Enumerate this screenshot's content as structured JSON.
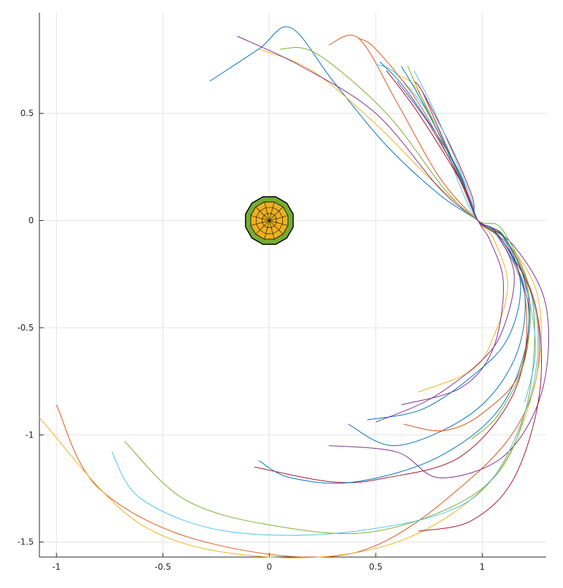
{
  "chart_data": {
    "type": "line",
    "title": "",
    "xlabel": "",
    "ylabel": "",
    "xlim": [
      -1.08,
      1.3
    ],
    "ylim": [
      -1.57,
      0.97
    ],
    "grid": true,
    "x_ticks": [
      -1,
      -0.5,
      0,
      0.5,
      1
    ],
    "x_tick_labels": [
      "-1",
      "-0.5",
      "0",
      "0.5",
      "1"
    ],
    "y_ticks": [
      0.5,
      0,
      -0.5,
      -1,
      -1.5
    ],
    "y_tick_labels": [
      "0.5",
      "0",
      "-0.5",
      "-1",
      "-1.5"
    ],
    "center_body": {
      "x": 0,
      "y": 0,
      "radius": 0.115,
      "colors": {
        "outer": "#77ac30",
        "inner": "#edb120",
        "edge": "#000000"
      }
    },
    "attractor": {
      "x": 0.98,
      "y": 0
    },
    "series": [
      {
        "color": "#0072bd",
        "values": [
          [
            -0.28,
            0.65
          ],
          [
            -0.05,
            0.8
          ],
          [
            0.1,
            0.9
          ],
          [
            0.3,
            0.65
          ],
          [
            0.55,
            0.35
          ],
          [
            0.8,
            0.12
          ],
          [
            0.98,
            0.0
          ],
          [
            1.1,
            -0.1
          ],
          [
            1.2,
            -0.35
          ],
          [
            1.15,
            -0.65
          ],
          [
            0.95,
            -0.9
          ],
          [
            0.6,
            -1.05
          ],
          [
            0.37,
            -0.95
          ]
        ]
      },
      {
        "color": "#d95319",
        "values": [
          [
            0.28,
            0.82
          ],
          [
            0.42,
            0.85
          ],
          [
            0.6,
            0.55
          ],
          [
            0.8,
            0.2
          ],
          [
            0.98,
            0.0
          ],
          [
            1.12,
            -0.1
          ],
          [
            1.26,
            -0.45
          ],
          [
            1.22,
            -0.85
          ],
          [
            0.95,
            -1.2
          ],
          [
            0.4,
            -1.55
          ],
          [
            -0.3,
            -1.5
          ],
          [
            -0.8,
            -1.25
          ],
          [
            -1.0,
            -0.86
          ]
        ]
      },
      {
        "color": "#edb120",
        "values": [
          [
            -0.05,
            0.8
          ],
          [
            0.2,
            0.7
          ],
          [
            0.5,
            0.45
          ],
          [
            0.75,
            0.2
          ],
          [
            0.98,
            0.0
          ],
          [
            1.1,
            -0.08
          ],
          [
            1.26,
            -0.35
          ],
          [
            1.25,
            -0.75
          ],
          [
            1.05,
            -1.2
          ],
          [
            0.6,
            -1.5
          ],
          [
            0.0,
            -1.57
          ],
          [
            -0.6,
            -1.42
          ],
          [
            -1.08,
            -0.92
          ]
        ]
      },
      {
        "color": "#7e2f8e",
        "values": [
          [
            -0.15,
            0.86
          ],
          [
            0.15,
            0.72
          ],
          [
            0.5,
            0.5
          ],
          [
            0.8,
            0.15
          ],
          [
            0.98,
            0.0
          ],
          [
            1.15,
            -0.12
          ],
          [
            1.3,
            -0.4
          ],
          [
            1.28,
            -0.8
          ],
          [
            1.1,
            -1.1
          ],
          [
            0.8,
            -1.2
          ],
          [
            0.6,
            -1.08
          ],
          [
            0.28,
            -1.05
          ]
        ]
      },
      {
        "color": "#77ac30",
        "values": [
          [
            0.05,
            0.8
          ],
          [
            0.22,
            0.78
          ],
          [
            0.55,
            0.5
          ],
          [
            0.82,
            0.15
          ],
          [
            0.98,
            0.0
          ],
          [
            1.1,
            -0.05
          ],
          [
            1.24,
            -0.4
          ],
          [
            1.2,
            -0.9
          ],
          [
            1.0,
            -1.25
          ],
          [
            0.5,
            -1.45
          ],
          [
            0.0,
            -1.42
          ],
          [
            -0.4,
            -1.3
          ],
          [
            -0.68,
            -1.03
          ]
        ]
      },
      {
        "color": "#4dbeee",
        "values": [
          [
            0.5,
            0.73
          ],
          [
            0.6,
            0.68
          ],
          [
            0.78,
            0.45
          ],
          [
            0.9,
            0.15
          ],
          [
            0.98,
            0.0
          ],
          [
            1.15,
            -0.15
          ],
          [
            1.26,
            -0.5
          ],
          [
            1.2,
            -0.9
          ],
          [
            0.95,
            -1.3
          ],
          [
            0.4,
            -1.45
          ],
          [
            -0.2,
            -1.45
          ],
          [
            -0.6,
            -1.3
          ],
          [
            -0.74,
            -1.08
          ]
        ]
      },
      {
        "color": "#a2142f",
        "values": [
          [
            0.68,
            0.65
          ],
          [
            0.72,
            0.6
          ],
          [
            0.85,
            0.35
          ],
          [
            0.95,
            0.12
          ],
          [
            0.98,
            0.0
          ],
          [
            1.12,
            -0.1
          ],
          [
            1.22,
            -0.4
          ],
          [
            1.15,
            -0.8
          ],
          [
            0.9,
            -1.1
          ],
          [
            0.55,
            -1.2
          ],
          [
            0.3,
            -1.22
          ],
          [
            -0.07,
            -1.15
          ]
        ]
      },
      {
        "color": "#0072bd",
        "values": [
          [
            0.52,
            0.74
          ],
          [
            0.65,
            0.6
          ],
          [
            0.88,
            0.25
          ],
          [
            0.98,
            0.0
          ],
          [
            1.1,
            -0.08
          ],
          [
            1.22,
            -0.45
          ],
          [
            1.1,
            -0.85
          ],
          [
            0.8,
            -1.1
          ],
          [
            0.4,
            -1.22
          ],
          [
            0.1,
            -1.2
          ],
          [
            -0.05,
            -1.12
          ]
        ]
      },
      {
        "color": "#d95319",
        "values": [
          [
            0.42,
            0.85
          ],
          [
            0.5,
            0.8
          ],
          [
            0.7,
            0.55
          ],
          [
            0.88,
            0.22
          ],
          [
            0.98,
            0.0
          ],
          [
            1.08,
            -0.08
          ],
          [
            1.2,
            -0.35
          ],
          [
            1.18,
            -0.7
          ],
          [
            1.0,
            -0.9
          ],
          [
            0.82,
            -0.98
          ],
          [
            0.63,
            -0.95
          ]
        ]
      },
      {
        "color": "#edb120",
        "values": [
          [
            0.6,
            0.68
          ],
          [
            0.7,
            0.6
          ],
          [
            0.9,
            0.2
          ],
          [
            0.98,
            0.0
          ],
          [
            1.05,
            -0.08
          ],
          [
            1.12,
            -0.3
          ],
          [
            1.05,
            -0.55
          ],
          [
            0.95,
            -0.7
          ],
          [
            0.7,
            -0.8
          ]
        ]
      },
      {
        "color": "#7e2f8e",
        "values": [
          [
            0.72,
            0.6
          ],
          [
            0.8,
            0.42
          ],
          [
            0.92,
            0.15
          ],
          [
            0.98,
            0.0
          ],
          [
            1.04,
            -0.1
          ],
          [
            1.1,
            -0.3
          ],
          [
            1.05,
            -0.6
          ],
          [
            0.9,
            -0.78
          ],
          [
            0.62,
            -0.86
          ]
        ]
      },
      {
        "color": "#77ac30",
        "values": [
          [
            0.65,
            0.72
          ],
          [
            0.75,
            0.5
          ],
          [
            0.92,
            0.15
          ],
          [
            0.98,
            0.0
          ],
          [
            1.12,
            -0.1
          ],
          [
            1.22,
            -0.35
          ],
          [
            1.2,
            -0.65
          ],
          [
            1.08,
            -0.9
          ],
          [
            0.95,
            -1.02
          ]
        ]
      },
      {
        "color": "#4dbeee",
        "values": [
          [
            0.68,
            0.7
          ],
          [
            0.78,
            0.5
          ],
          [
            0.93,
            0.15
          ],
          [
            0.98,
            0.0
          ],
          [
            1.06,
            -0.06
          ],
          [
            1.2,
            -0.3
          ],
          [
            1.25,
            -0.6
          ],
          [
            1.2,
            -0.85
          ]
        ]
      },
      {
        "color": "#a2142f",
        "values": [
          [
            0.55,
            0.7
          ],
          [
            0.7,
            0.5
          ],
          [
            0.9,
            0.18
          ],
          [
            0.98,
            0.0
          ],
          [
            1.1,
            -0.1
          ],
          [
            1.25,
            -0.4
          ],
          [
            1.27,
            -0.8
          ],
          [
            1.15,
            -1.2
          ],
          [
            0.95,
            -1.4
          ],
          [
            0.7,
            -1.45
          ]
        ]
      },
      {
        "color": "#0072bd",
        "values": [
          [
            0.62,
            0.72
          ],
          [
            0.72,
            0.55
          ],
          [
            0.9,
            0.2
          ],
          [
            0.98,
            0.0
          ],
          [
            1.1,
            -0.07
          ],
          [
            1.18,
            -0.3
          ],
          [
            1.12,
            -0.55
          ],
          [
            0.96,
            -0.72
          ],
          [
            0.72,
            -0.88
          ],
          [
            0.46,
            -0.93
          ]
        ]
      },
      {
        "color": "#7e2f8e",
        "values": [
          [
            0.6,
            0.65
          ],
          [
            0.75,
            0.45
          ],
          [
            0.92,
            0.15
          ],
          [
            0.98,
            0.0
          ],
          [
            1.06,
            -0.05
          ],
          [
            1.15,
            -0.25
          ],
          [
            1.1,
            -0.5
          ],
          [
            1.0,
            -0.65
          ],
          [
            0.76,
            -0.83
          ],
          [
            0.5,
            -0.94
          ]
        ]
      }
    ]
  }
}
